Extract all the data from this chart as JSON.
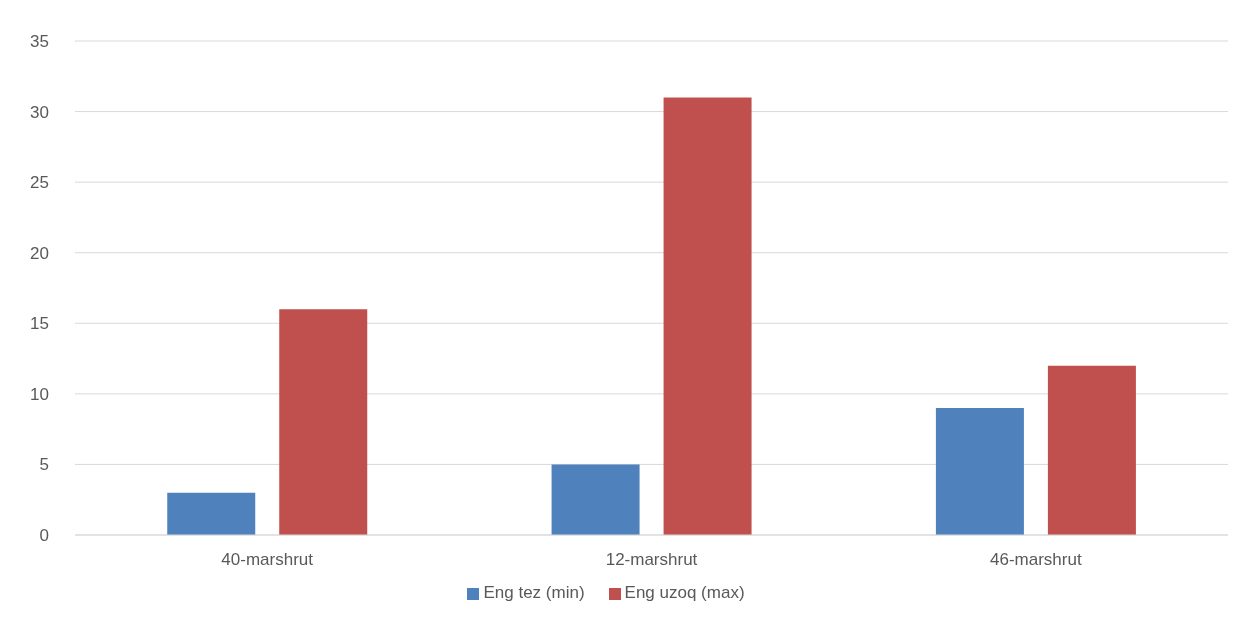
{
  "chart_data": {
    "type": "bar",
    "categories": [
      "40-marshrut",
      "12-marshrut",
      "46-marshrut"
    ],
    "series": [
      {
        "name": "Eng tez (min)",
        "color": "#4f81bd",
        "values": [
          3,
          5,
          9
        ]
      },
      {
        "name": "Eng uzoq (max)",
        "color": "#c0504d",
        "values": [
          16,
          31,
          12
        ]
      }
    ],
    "ylim": [
      0,
      35
    ],
    "yticks": [
      0,
      5,
      10,
      15,
      20,
      25,
      30,
      35
    ],
    "grid": "y",
    "legend": "bottom"
  }
}
